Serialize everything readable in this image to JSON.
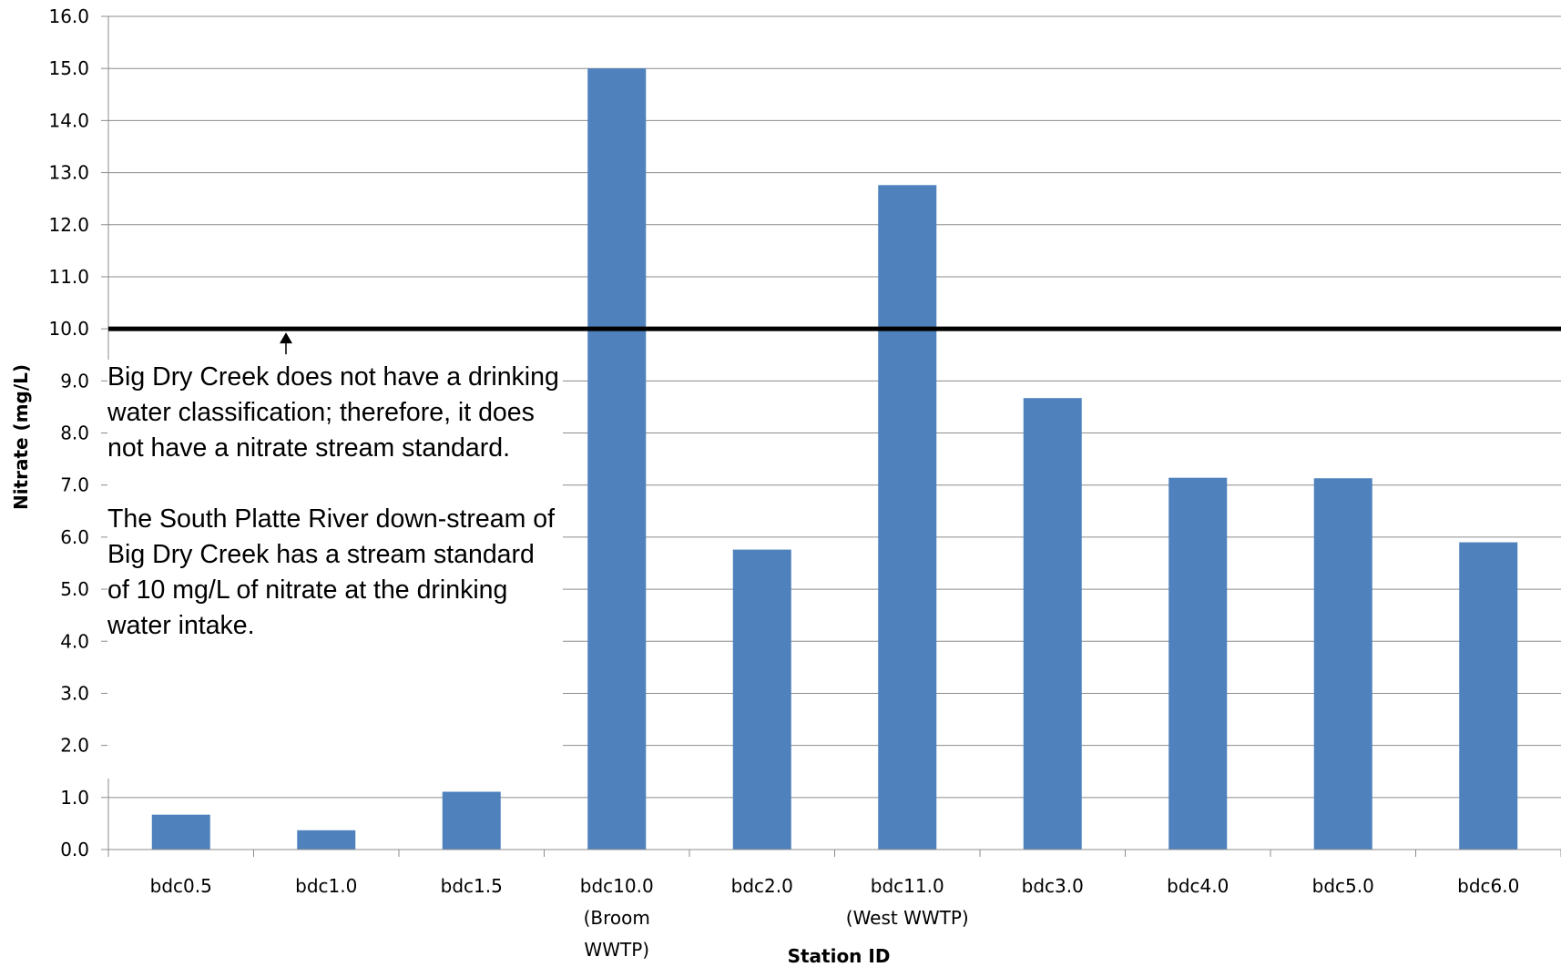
{
  "chart_data": {
    "type": "bar",
    "title": "",
    "xlabel": "Station ID",
    "ylabel": "Nitrate (mg/L)",
    "ylim": [
      0,
      16
    ],
    "yticks": [
      "0.0",
      "1.0",
      "2.0",
      "3.0",
      "4.0",
      "5.0",
      "6.0",
      "7.0",
      "8.0",
      "9.0",
      "10.0",
      "11.0",
      "12.0",
      "13.0",
      "14.0",
      "15.0",
      "16.0"
    ],
    "categories": [
      [
        "bdc0.5"
      ],
      [
        "bdc1.0"
      ],
      [
        "bdc1.5"
      ],
      [
        "bdc10.0",
        "(Broom",
        "WWTP)"
      ],
      [
        "bdc2.0"
      ],
      [
        "bdc11.0",
        "(West WWTP)"
      ],
      [
        "bdc3.0"
      ],
      [
        "bdc4.0"
      ],
      [
        "bdc5.0"
      ],
      [
        "bdc6.0"
      ]
    ],
    "values": [
      0.67,
      0.37,
      1.11,
      15.0,
      5.76,
      12.76,
      8.67,
      7.14,
      7.13,
      5.9
    ],
    "bar_color": "#4F81BD",
    "grid": true,
    "reference_line": {
      "value": 10.0,
      "color": "#000000"
    },
    "annotation": {
      "paragraph1": "Big Dry Creek does not have a drinking water classification; therefore, it does not have a nitrate stream standard.",
      "paragraph2": "The South Platte River down-stream of  Big Dry Creek has a stream standard of 10 mg/L of nitrate at the drinking water intake."
    }
  }
}
